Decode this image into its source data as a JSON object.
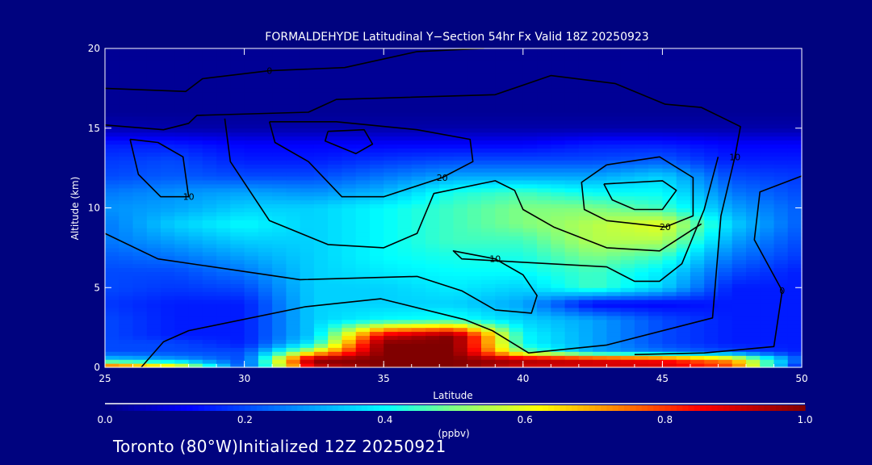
{
  "chart_data": {
    "type": "heatmap",
    "title": "FORMALDEHYDE Latitudinal Y−Section 54hr  Fx Valid 18Z 20250923",
    "xlabel": "Latitude",
    "ylabel": "Altitude (km)",
    "xlim": [
      25,
      50
    ],
    "ylim": [
      0,
      20
    ],
    "xticks": [
      "25",
      "30",
      "35",
      "40",
      "45",
      "50"
    ],
    "yticks": [
      "0",
      "5",
      "10",
      "15",
      "20"
    ],
    "colorbar": {
      "label": "(ppbv)",
      "range": [
        0.0,
        1.0
      ],
      "ticks": [
        "0.0",
        "0.2",
        "0.4",
        "0.6",
        "0.8",
        "1.0"
      ],
      "colormap": [
        "#000080",
        "#0000ff",
        "#00ffff",
        "#80ff80",
        "#ffff00",
        "#ff0000",
        "#800000"
      ]
    },
    "grid_lat": [
      25,
      27.5,
      30,
      32.5,
      35,
      37.5,
      40,
      42.5,
      45,
      47.5,
      50
    ],
    "grid_alt": [
      0,
      0.5,
      1,
      1.5,
      2,
      3,
      4,
      5,
      6,
      7,
      8,
      9,
      10,
      11,
      12,
      13,
      14,
      15,
      16,
      18,
      20
    ],
    "values": [
      [
        0.85,
        0.7,
        0.2,
        0.9,
        1.0,
        1.0,
        0.9,
        0.9,
        0.9,
        0.8,
        0.1
      ],
      [
        0.35,
        0.3,
        0.2,
        1.0,
        1.0,
        1.0,
        0.95,
        0.9,
        0.85,
        0.7,
        0.2
      ],
      [
        0.2,
        0.2,
        0.2,
        0.6,
        1.0,
        1.0,
        0.5,
        0.3,
        0.25,
        0.2,
        0.15
      ],
      [
        0.2,
        0.2,
        0.15,
        0.4,
        1.0,
        1.0,
        0.4,
        0.3,
        0.2,
        0.15,
        0.15
      ],
      [
        0.2,
        0.15,
        0.15,
        0.35,
        0.9,
        1.0,
        0.4,
        0.3,
        0.2,
        0.15,
        0.15
      ],
      [
        0.2,
        0.15,
        0.15,
        0.35,
        0.4,
        0.42,
        0.35,
        0.3,
        0.2,
        0.15,
        0.15
      ],
      [
        0.18,
        0.15,
        0.15,
        0.35,
        0.35,
        0.35,
        0.3,
        0.12,
        0.12,
        0.15,
        0.15
      ],
      [
        0.2,
        0.18,
        0.2,
        0.35,
        0.35,
        0.38,
        0.35,
        0.45,
        0.35,
        0.15,
        0.15
      ],
      [
        0.2,
        0.2,
        0.25,
        0.35,
        0.38,
        0.4,
        0.4,
        0.45,
        0.38,
        0.2,
        0.15
      ],
      [
        0.22,
        0.25,
        0.3,
        0.35,
        0.4,
        0.42,
        0.42,
        0.5,
        0.45,
        0.25,
        0.18
      ],
      [
        0.25,
        0.3,
        0.35,
        0.35,
        0.4,
        0.45,
        0.45,
        0.55,
        0.55,
        0.3,
        0.2
      ],
      [
        0.25,
        0.35,
        0.4,
        0.35,
        0.4,
        0.45,
        0.5,
        0.55,
        0.6,
        0.35,
        0.22
      ],
      [
        0.28,
        0.3,
        0.35,
        0.35,
        0.4,
        0.45,
        0.5,
        0.5,
        0.45,
        0.3,
        0.22
      ],
      [
        0.25,
        0.28,
        0.3,
        0.28,
        0.32,
        0.42,
        0.45,
        0.4,
        0.4,
        0.25,
        0.2
      ],
      [
        0.2,
        0.22,
        0.2,
        0.2,
        0.25,
        0.3,
        0.3,
        0.3,
        0.35,
        0.2,
        0.18
      ],
      [
        0.18,
        0.2,
        0.15,
        0.15,
        0.18,
        0.2,
        0.2,
        0.2,
        0.22,
        0.15,
        0.15
      ],
      [
        0.15,
        0.15,
        0.12,
        0.12,
        0.12,
        0.12,
        0.12,
        0.15,
        0.15,
        0.12,
        0.12
      ],
      [
        0.05,
        0.04,
        0.04,
        0.04,
        0.04,
        0.04,
        0.04,
        0.04,
        0.04,
        0.04,
        0.04
      ],
      [
        0.02,
        0.02,
        0.02,
        0.02,
        0.02,
        0.02,
        0.02,
        0.02,
        0.02,
        0.02,
        0.02
      ],
      [
        0.02,
        0.02,
        0.02,
        0.02,
        0.02,
        0.02,
        0.02,
        0.02,
        0.02,
        0.02,
        0.02
      ],
      [
        0.02,
        0.02,
        0.02,
        0.02,
        0.02,
        0.02,
        0.02,
        0.02,
        0.02,
        0.02,
        0.02
      ]
    ],
    "contours": [
      {
        "label": "0",
        "points": [
          [
            25,
            17.5
          ],
          [
            27.9,
            17.3
          ],
          [
            28.5,
            18.1
          ],
          [
            30.9,
            18.6
          ],
          [
            33.6,
            18.8
          ],
          [
            36.2,
            19.8
          ],
          [
            38.6,
            20
          ]
        ]
      },
      {
        "label": "10",
        "points": [
          [
            25,
            15.2
          ],
          [
            27.1,
            14.9
          ],
          [
            28.0,
            15.3
          ],
          [
            28.3,
            15.8
          ],
          [
            32.3,
            16.0
          ],
          [
            33.3,
            16.8
          ],
          [
            39.0,
            17.1
          ],
          [
            41.0,
            18.3
          ],
          [
            43.3,
            17.8
          ],
          [
            45.1,
            16.5
          ],
          [
            46.4,
            16.3
          ],
          [
            47.8,
            15.1
          ],
          [
            47.6,
            13.2
          ],
          [
            47.1,
            9.5
          ],
          [
            46.8,
            3.1
          ],
          [
            43.0,
            1.4
          ],
          [
            40.2,
            0.9
          ],
          [
            38.9,
            2.3
          ],
          [
            37.9,
            3.0
          ],
          [
            34.9,
            4.3
          ],
          [
            32.2,
            3.8
          ],
          [
            28.0,
            2.3
          ],
          [
            27.1,
            1.6
          ],
          [
            26.3,
            0
          ]
        ]
      },
      {
        "label": "20",
        "points": [
          [
            30.9,
            15.4
          ],
          [
            33.3,
            15.4
          ],
          [
            36.2,
            14.9
          ],
          [
            38.1,
            14.3
          ],
          [
            38.2,
            12.9
          ],
          [
            37.1,
            11.9
          ],
          [
            35.0,
            10.7
          ],
          [
            33.5,
            10.7
          ],
          [
            32.3,
            12.9
          ],
          [
            31.1,
            14.1
          ],
          [
            30.9,
            15.4
          ]
        ]
      },
      {
        "label": "",
        "points": [
          [
            33.0,
            14.8
          ],
          [
            34.3,
            14.9
          ],
          [
            34.6,
            14.0
          ],
          [
            34.0,
            13.4
          ],
          [
            32.9,
            14.2
          ],
          [
            33.0,
            14.8
          ]
        ]
      },
      {
        "label": "20",
        "points": [
          [
            43.0,
            12.7
          ],
          [
            44.9,
            13.2
          ],
          [
            46.1,
            11.9
          ],
          [
            46.1,
            9.5
          ],
          [
            45.1,
            8.8
          ],
          [
            43.0,
            9.2
          ],
          [
            42.2,
            9.9
          ],
          [
            42.1,
            11.6
          ],
          [
            43.0,
            12.7
          ]
        ]
      },
      {
        "label": "",
        "points": [
          [
            42.9,
            11.5
          ],
          [
            45.0,
            11.7
          ],
          [
            45.5,
            11.1
          ],
          [
            45.0,
            9.9
          ],
          [
            44.0,
            9.9
          ],
          [
            43.2,
            10.5
          ],
          [
            42.9,
            11.5
          ]
        ]
      },
      {
        "label": "10",
        "points": [
          [
            25,
            8.4
          ],
          [
            26.9,
            6.8
          ],
          [
            32.0,
            5.5
          ],
          [
            36.2,
            5.7
          ],
          [
            37.8,
            4.8
          ],
          [
            39.0,
            3.6
          ],
          [
            40.3,
            3.4
          ],
          [
            40.5,
            4.5
          ],
          [
            40.0,
            5.8
          ],
          [
            39.0,
            6.8
          ],
          [
            37.5,
            7.3
          ],
          [
            37.8,
            6.8
          ],
          [
            43.0,
            6.3
          ],
          [
            44.0,
            5.4
          ],
          [
            44.9,
            5.4
          ],
          [
            45.7,
            6.5
          ],
          [
            46.5,
            9.9
          ],
          [
            47.0,
            13.2
          ]
        ]
      },
      {
        "label": "",
        "points": [
          [
            29.3,
            15.6
          ],
          [
            29.5,
            12.9
          ],
          [
            30.9,
            9.2
          ],
          [
            33.0,
            7.7
          ],
          [
            35.0,
            7.5
          ],
          [
            36.2,
            8.4
          ],
          [
            36.8,
            10.9
          ],
          [
            39.0,
            11.7
          ],
          [
            39.7,
            11.1
          ],
          [
            40.0,
            9.9
          ],
          [
            41.1,
            8.8
          ],
          [
            43.0,
            7.5
          ],
          [
            44.9,
            7.3
          ],
          [
            46.4,
            9.0
          ]
        ]
      },
      {
        "label": "10",
        "points": [
          [
            25.9,
            14.3
          ],
          [
            26.9,
            14.1
          ],
          [
            27.8,
            13.2
          ],
          [
            28.0,
            10.7
          ],
          [
            27.0,
            10.7
          ],
          [
            26.2,
            12.1
          ],
          [
            25.9,
            14.3
          ]
        ]
      },
      {
        "label": "0",
        "points": [
          [
            44,
            0.8
          ],
          [
            46.5,
            0.9
          ],
          [
            49,
            1.3
          ],
          [
            49.3,
            4.8
          ],
          [
            48.3,
            8
          ],
          [
            48.5,
            11
          ],
          [
            50,
            12
          ]
        ]
      }
    ]
  },
  "footer": "Toronto (80°W)Initialized 12Z 20250921"
}
